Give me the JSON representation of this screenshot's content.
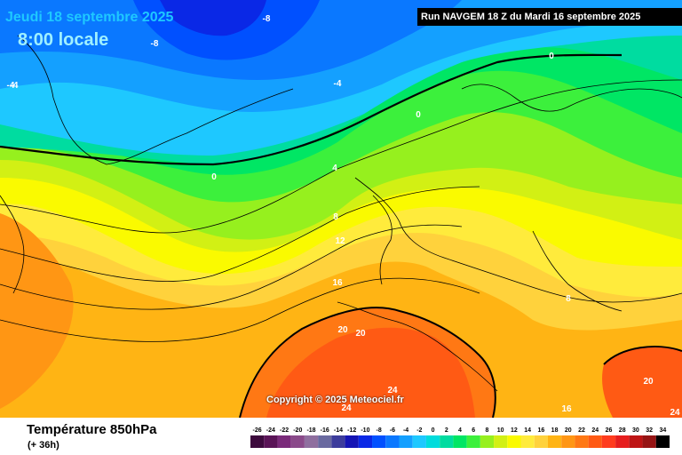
{
  "header": {
    "date": "Jeudi 18 septembre 2025",
    "time": "8:00 locale",
    "run": "Run NAVGEM 18 Z du Mardi 16 septembre 2025"
  },
  "footer": {
    "variable": "Température 850hPa",
    "lead_time": "(+ 36h)"
  },
  "copyright": "Copyright © 2025 Meteociel.fr",
  "color_scale": {
    "ticks": [
      "-26",
      "-24",
      "-22",
      "-20",
      "-18",
      "-16",
      "-14",
      "-12",
      "-10",
      "-8",
      "-6",
      "-4",
      "-2",
      "0",
      "2",
      "4",
      "6",
      "8",
      "10",
      "12",
      "14",
      "16",
      "18",
      "20",
      "22",
      "24",
      "26",
      "28",
      "30",
      "32",
      "34"
    ],
    "colors": [
      "#3d0a3d",
      "#5a1457",
      "#7a2a7a",
      "#8a4a8a",
      "#8f6f9f",
      "#6a6aa0",
      "#3c3c9c",
      "#1414b4",
      "#0a28e6",
      "#0050ff",
      "#0a78ff",
      "#14a0ff",
      "#1ec8ff",
      "#00dcdc",
      "#00dca0",
      "#00e664",
      "#3cf03c",
      "#96f01e",
      "#d2f014",
      "#fafa00",
      "#ffeb3c",
      "#ffd23c",
      "#ffb414",
      "#ff9614",
      "#ff7814",
      "#ff5a14",
      "#ff3c1e",
      "#e61e1e",
      "#be1414",
      "#961414",
      "#000000"
    ]
  },
  "isotherm_labels": [
    {
      "text": "-4"
    },
    {
      "text": "-8"
    },
    {
      "text": "-8"
    },
    {
      "text": "-4"
    },
    {
      "text": "-4"
    },
    {
      "text": "0"
    },
    {
      "text": "0"
    },
    {
      "text": "0"
    },
    {
      "text": "4"
    },
    {
      "text": "8"
    },
    {
      "text": "12"
    },
    {
      "text": "16"
    },
    {
      "text": "20"
    },
    {
      "text": "20"
    },
    {
      "text": "24"
    },
    {
      "text": "24"
    },
    {
      "text": "8"
    },
    {
      "text": "20"
    },
    {
      "text": "16"
    },
    {
      "text": "24"
    }
  ]
}
